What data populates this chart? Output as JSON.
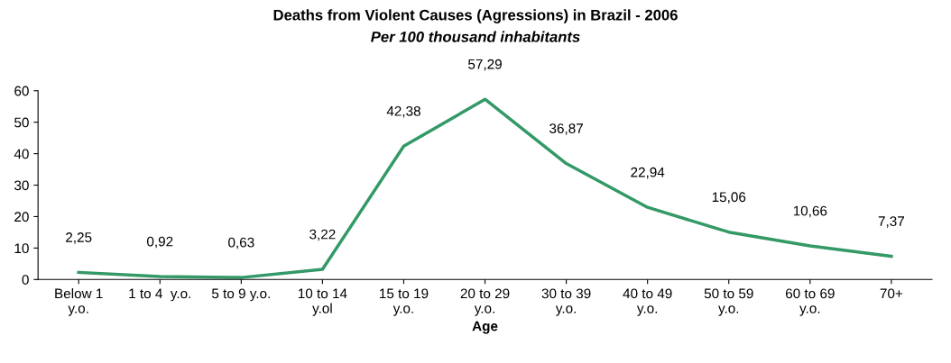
{
  "chart_data": {
    "type": "line",
    "title": "Deaths from Violent Causes (Agressions) in Brazil - 2006",
    "subtitle": "Per 100 thousand inhabitants",
    "xlabel": "Age",
    "categories": [
      "Below 1\ny.o.",
      "1 to 4  y.o.",
      "5 to 9 y.o.",
      "10 to 14\ny.ol",
      "15 to 19\ny.o.",
      "20 to 29\ny.o.",
      "30 to 39\ny.o.",
      "40 to 49\ny.o.",
      "50 to 59\ny.o.",
      "60 to 69\ny.o.",
      "70+"
    ],
    "values": [
      2.25,
      0.92,
      0.63,
      3.22,
      42.38,
      57.29,
      36.87,
      22.94,
      15.06,
      10.66,
      7.37
    ],
    "value_labels": [
      "2,25",
      "0,92",
      "0,63",
      "3,22",
      "42,38",
      "57,29",
      "36,87",
      "22,94",
      "15,06",
      "10,66",
      "7,37"
    ],
    "color": "#339966",
    "ylim": [
      0,
      60
    ],
    "yticks": [
      0,
      10,
      20,
      30,
      40,
      50,
      60
    ],
    "grid": false,
    "legend": false,
    "marker": "none",
    "line_style": "solid"
  }
}
